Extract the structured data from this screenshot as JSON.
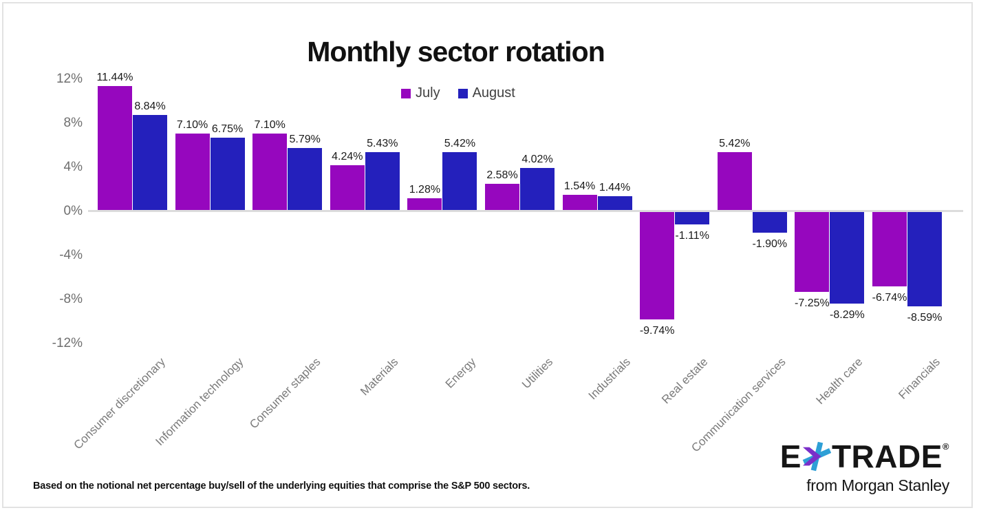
{
  "card": {
    "title": "Monthly sector rotation",
    "footnote": "Based on the notional net percentage buy/sell of the underlying equities that comprise the S&P 500 sectors."
  },
  "chart_data": {
    "type": "bar",
    "title": "Monthly sector rotation",
    "categories": [
      "Consumer discretionary",
      "Information technology",
      "Consumer staples",
      "Materials",
      "Energy",
      "Utilities",
      "Industrials",
      "Real estate",
      "Communication services",
      "Health care",
      "Financials"
    ],
    "series": [
      {
        "name": "July",
        "color": "#9607BE",
        "values": [
          11.44,
          7.1,
          7.1,
          4.24,
          1.28,
          2.58,
          1.54,
          -9.74,
          5.42,
          -7.25,
          -6.74
        ]
      },
      {
        "name": "August",
        "color": "#2420BC",
        "values": [
          8.84,
          6.75,
          5.79,
          5.43,
          5.42,
          4.02,
          1.44,
          -1.11,
          -1.9,
          -8.29,
          -8.59
        ]
      }
    ],
    "value_label_format": "0.00%",
    "yticks": [
      12,
      8,
      4,
      0,
      -4,
      -8,
      -12
    ],
    "ytick_labels": [
      "12%",
      "8%",
      "4%",
      "0%",
      "-4%",
      "-8%",
      "-12%"
    ],
    "ylim": [
      -12,
      12
    ],
    "grid": false,
    "legend_position": "top-center",
    "xlabel": "",
    "ylabel": ""
  },
  "logo": {
    "part_e": "E",
    "part_trade": "TRADE",
    "registered_mark": "®",
    "tagline": "from Morgan Stanley",
    "star_purple": "#7B2FC9",
    "star_blue": "#2E9FD6"
  },
  "colors": {
    "july": "#9607BE",
    "august": "#2420BC",
    "axis_label": "#6E6E6E",
    "category_label": "#7A7A7A",
    "value_label": "#1A1A1A",
    "zero_line": "#DCDCDC",
    "card_border": "#E2E2E2",
    "title": "#111111"
  }
}
